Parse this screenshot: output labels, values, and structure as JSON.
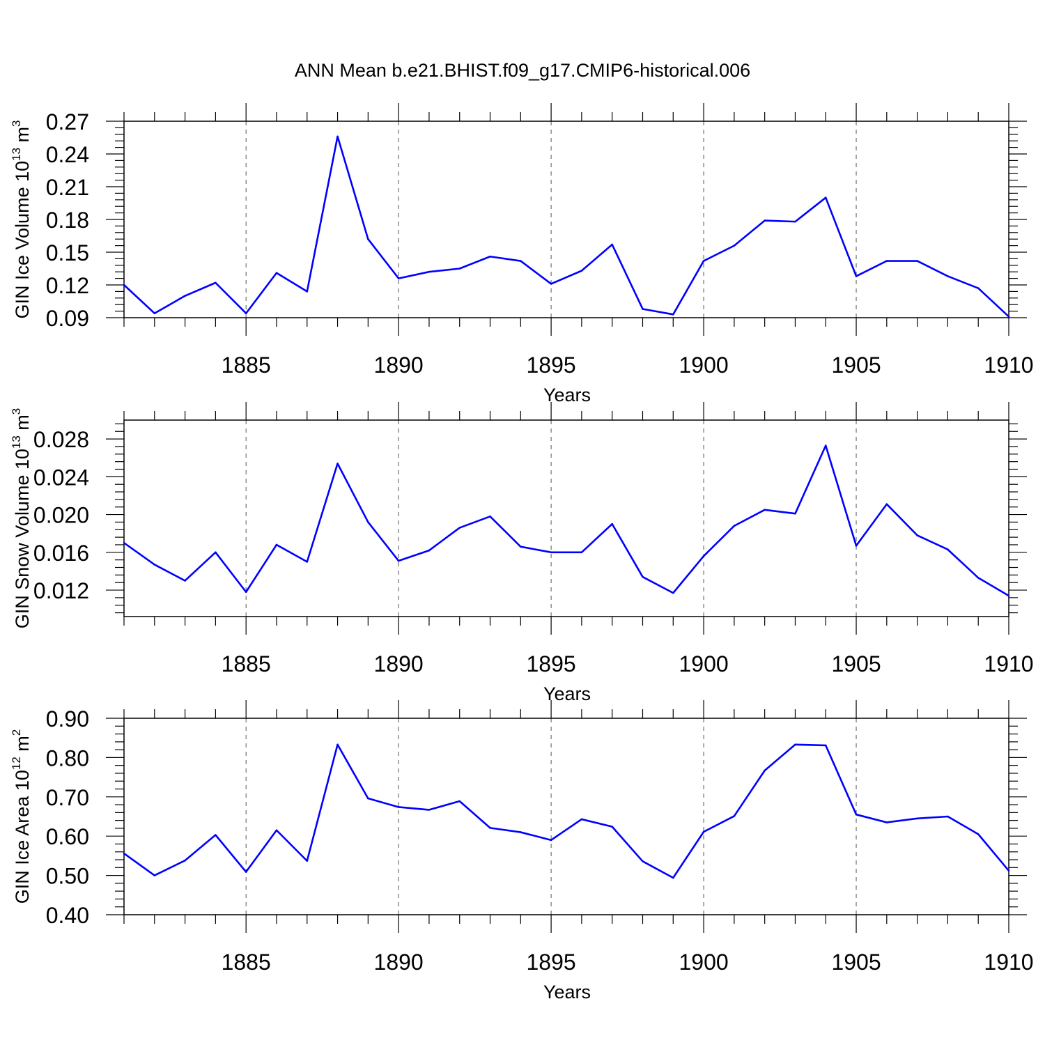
{
  "title": "ANN Mean b.e21.BHIST.f09_g17.CMIP6-historical.006",
  "colors": {
    "series": "#0000ff",
    "axis": "#000000",
    "grid": "#555555"
  },
  "chart_data": [
    {
      "type": "line",
      "xlabel": "Years",
      "ylabel": {
        "text": "GIN Ice Volume 10",
        "exponent": "13",
        "unit": " m",
        "unit_exponent": "3"
      },
      "xlim": [
        1881,
        1910
      ],
      "ylim": [
        0.09,
        0.27
      ],
      "xticks": [
        1885,
        1890,
        1895,
        1900,
        1905,
        1910
      ],
      "yticks": [
        0.09,
        0.12,
        0.15,
        0.18,
        0.21,
        0.24,
        0.27
      ],
      "ytick_decimals": 2,
      "grid": "vertical-dashed",
      "x": [
        1881,
        1882,
        1883,
        1884,
        1885,
        1886,
        1887,
        1888,
        1889,
        1890,
        1891,
        1892,
        1893,
        1894,
        1895,
        1896,
        1897,
        1898,
        1899,
        1900,
        1901,
        1902,
        1903,
        1904,
        1905,
        1906,
        1907,
        1908,
        1909,
        1910
      ],
      "series": [
        {
          "values": [
            0.12,
            0.094,
            0.11,
            0.122,
            0.094,
            0.131,
            0.114,
            0.256,
            0.162,
            0.126,
            0.132,
            0.135,
            0.146,
            0.142,
            0.121,
            0.133,
            0.157,
            0.098,
            0.093,
            0.142,
            0.156,
            0.179,
            0.178,
            0.2,
            0.128,
            0.142,
            0.142,
            0.128,
            0.117,
            0.091
          ]
        }
      ]
    },
    {
      "type": "line",
      "xlabel": "Years",
      "ylabel": {
        "text": "GIN Snow Volume 10",
        "exponent": "13",
        "unit": " m",
        "unit_exponent": "3"
      },
      "xlim": [
        1881,
        1910
      ],
      "ylim": [
        0.0092,
        0.03
      ],
      "xticks": [
        1885,
        1890,
        1895,
        1900,
        1905,
        1910
      ],
      "yticks": [
        0.012,
        0.016,
        0.02,
        0.024,
        0.028
      ],
      "ytick_decimals": 3,
      "grid": "vertical-dashed",
      "x": [
        1881,
        1882,
        1883,
        1884,
        1885,
        1886,
        1887,
        1888,
        1889,
        1890,
        1891,
        1892,
        1893,
        1894,
        1895,
        1896,
        1897,
        1898,
        1899,
        1900,
        1901,
        1902,
        1903,
        1904,
        1905,
        1906,
        1907,
        1908,
        1909,
        1910
      ],
      "series": [
        {
          "values": [
            0.017,
            0.0147,
            0.013,
            0.016,
            0.0118,
            0.0168,
            0.015,
            0.0254,
            0.0192,
            0.0151,
            0.0162,
            0.0186,
            0.0198,
            0.0166,
            0.016,
            0.016,
            0.019,
            0.0134,
            0.0117,
            0.0156,
            0.0188,
            0.0205,
            0.0201,
            0.0273,
            0.0167,
            0.0211,
            0.0178,
            0.0163,
            0.0133,
            0.0114
          ]
        }
      ]
    },
    {
      "type": "line",
      "xlabel": "Years",
      "ylabel": {
        "text": "GIN Ice Area 10",
        "exponent": "12",
        "unit": " m",
        "unit_exponent": "2"
      },
      "xlim": [
        1881,
        1910
      ],
      "ylim": [
        0.4,
        0.9
      ],
      "xticks": [
        1885,
        1890,
        1895,
        1900,
        1905,
        1910
      ],
      "yticks": [
        0.4,
        0.5,
        0.6,
        0.7,
        0.8,
        0.9
      ],
      "ytick_decimals": 2,
      "grid": "vertical-dashed",
      "x": [
        1881,
        1882,
        1883,
        1884,
        1885,
        1886,
        1887,
        1888,
        1889,
        1890,
        1891,
        1892,
        1893,
        1894,
        1895,
        1896,
        1897,
        1898,
        1899,
        1900,
        1901,
        1902,
        1903,
        1904,
        1905,
        1906,
        1907,
        1908,
        1909,
        1910
      ],
      "series": [
        {
          "values": [
            0.556,
            0.5,
            0.538,
            0.603,
            0.509,
            0.615,
            0.537,
            0.833,
            0.696,
            0.674,
            0.667,
            0.689,
            0.621,
            0.61,
            0.59,
            0.643,
            0.624,
            0.536,
            0.494,
            0.611,
            0.651,
            0.767,
            0.833,
            0.831,
            0.655,
            0.635,
            0.645,
            0.65,
            0.605,
            0.512
          ]
        }
      ]
    }
  ]
}
